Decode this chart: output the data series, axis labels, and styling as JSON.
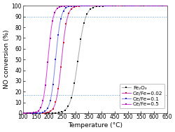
{
  "title": "",
  "xlabel": "Temperature (°C)",
  "ylabel": "NO conversion (%)",
  "xlim": [
    100,
    650
  ],
  "ylim": [
    0,
    100
  ],
  "xticks": [
    100,
    150,
    200,
    250,
    300,
    350,
    400,
    450,
    500,
    550,
    600,
    650
  ],
  "yticks": [
    0,
    10,
    20,
    30,
    40,
    50,
    60,
    70,
    80,
    90,
    100
  ],
  "hlines": [
    90,
    17
  ],
  "series": [
    {
      "label": "Fe₂O₃",
      "line_color": "#aaaaaa",
      "marker_color": "#111111",
      "midpoint": 310,
      "steepness": 0.072,
      "marker": "s",
      "markersize": 2.0,
      "marker_interval": 12
    },
    {
      "label": "Ce/Fe=0.02",
      "line_color": "#cc44cc",
      "marker_color": "#dd1111",
      "midpoint": 248,
      "steepness": 0.095,
      "marker": "s",
      "markersize": 2.0,
      "marker_interval": 10
    },
    {
      "label": "Ce/Fe=0.1",
      "line_color": "#8888ee",
      "marker_color": "#2222cc",
      "midpoint": 225,
      "steepness": 0.1,
      "marker": "s",
      "markersize": 2.0,
      "marker_interval": 10
    },
    {
      "label": "Ce/Fe=0.5",
      "line_color": "#dd44dd",
      "marker_color": "#aa00aa",
      "midpoint": 196,
      "steepness": 0.105,
      "marker": "s",
      "markersize": 2.0,
      "marker_interval": 9
    }
  ],
  "legend_fontsize": 5.2,
  "axis_fontsize": 6.5,
  "tick_fontsize": 5.5,
  "background_color": "#ffffff",
  "hline_color": "#6699cc",
  "hline_linestyle": ":",
  "hline_linewidth": 0.7
}
